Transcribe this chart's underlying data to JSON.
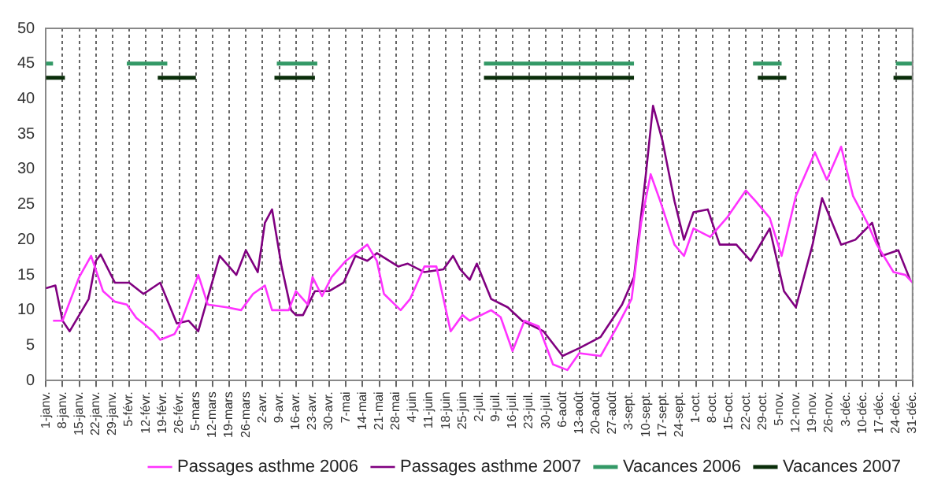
{
  "chart_data": {
    "type": "line",
    "ylim": [
      0,
      50
    ],
    "yticks": [
      0,
      5,
      10,
      15,
      20,
      25,
      30,
      35,
      40,
      45,
      50
    ],
    "xlim": [
      "--01-01",
      "--12-31"
    ],
    "xticks": [
      {
        "value": "--01-01",
        "label": "1-janv."
      },
      {
        "value": "--01-08",
        "label": "8-janv."
      },
      {
        "value": "--01-15",
        "label": "15-janv."
      },
      {
        "value": "--01-22",
        "label": "22-janv."
      },
      {
        "value": "--01-29",
        "label": "29-janv."
      },
      {
        "value": "--02-05",
        "label": "5-févr."
      },
      {
        "value": "--02-12",
        "label": "12-févr."
      },
      {
        "value": "--02-19",
        "label": "19-févr."
      },
      {
        "value": "--02-26",
        "label": "26-févr."
      },
      {
        "value": "--03-05",
        "label": "5-mars"
      },
      {
        "value": "--03-12",
        "label": "12-mars"
      },
      {
        "value": "--03-19",
        "label": "19-mars"
      },
      {
        "value": "--03-26",
        "label": "26-mars"
      },
      {
        "value": "--04-02",
        "label": "2-avr."
      },
      {
        "value": "--04-09",
        "label": "9-avr."
      },
      {
        "value": "--04-16",
        "label": "16-avr."
      },
      {
        "value": "--04-23",
        "label": "23-avr."
      },
      {
        "value": "--04-30",
        "label": "30-avr."
      },
      {
        "value": "--05-07",
        "label": "7-mai"
      },
      {
        "value": "--05-14",
        "label": "14-mai"
      },
      {
        "value": "--05-21",
        "label": "21-mai"
      },
      {
        "value": "--05-28",
        "label": "28-mai"
      },
      {
        "value": "--06-04",
        "label": "4-juin"
      },
      {
        "value": "--06-11",
        "label": "11-juin"
      },
      {
        "value": "--06-18",
        "label": "18-juin"
      },
      {
        "value": "--06-25",
        "label": "25-juin"
      },
      {
        "value": "--07-02",
        "label": "2-juil."
      },
      {
        "value": "--07-09",
        "label": "9-juil."
      },
      {
        "value": "--07-16",
        "label": "16-juil."
      },
      {
        "value": "--07-23",
        "label": "23-juil."
      },
      {
        "value": "--07-30",
        "label": "30-juil."
      },
      {
        "value": "--08-06",
        "label": "6-août"
      },
      {
        "value": "--08-13",
        "label": "13-août"
      },
      {
        "value": "--08-20",
        "label": "20-août"
      },
      {
        "value": "--08-27",
        "label": "27-août"
      },
      {
        "value": "--09-03",
        "label": "3-sept."
      },
      {
        "value": "--09-10",
        "label": "10-sept."
      },
      {
        "value": "--09-17",
        "label": "17-sept."
      },
      {
        "value": "--09-24",
        "label": "24-sept."
      },
      {
        "value": "--10-01",
        "label": "1-oct."
      },
      {
        "value": "--10-08",
        "label": "8-oct."
      },
      {
        "value": "--10-15",
        "label": "15-oct."
      },
      {
        "value": "--10-22",
        "label": "22-oct."
      },
      {
        "value": "--10-29",
        "label": "29-oct."
      },
      {
        "value": "--11-05",
        "label": "5-nov."
      },
      {
        "value": "--11-12",
        "label": "12-nov."
      },
      {
        "value": "--11-19",
        "label": "19-nov."
      },
      {
        "value": "--11-26",
        "label": "26-nov."
      },
      {
        "value": "--12-03",
        "label": "3-déc."
      },
      {
        "value": "--12-10",
        "label": "10-déc."
      },
      {
        "value": "--12-17",
        "label": "17-déc."
      },
      {
        "value": "--12-24",
        "label": "24-déc."
      },
      {
        "value": "--12-31",
        "label": "31-déc."
      }
    ],
    "grid": "x",
    "legend": "bottom",
    "marker": "none",
    "line_style": "solid",
    "series": [
      {
        "name": "Passages asthme 2006",
        "color": "#ff33ff",
        "x": [
          "--01-04",
          "--01-08",
          "--01-15",
          "--01-20",
          "--01-25",
          "--01-30",
          "--02-04",
          "--02-08",
          "--02-15",
          "--02-18",
          "--02-24",
          "--02-27",
          "--03-06",
          "--03-10",
          "--03-18",
          "--03-24",
          "--03-29",
          "--04-03",
          "--04-06",
          "--04-13",
          "--04-16",
          "--04-21",
          "--04-23",
          "--04-27",
          "--05-01",
          "--05-07",
          "--05-16",
          "--05-20",
          "--05-23",
          "--05-30",
          "--06-03",
          "--06-09",
          "--06-14",
          "--06-20",
          "--06-25",
          "--06-28",
          "--07-07",
          "--07-11",
          "--07-16",
          "--07-21",
          "--07-27",
          "--08-02",
          "--08-08",
          "--08-13",
          "--08-22",
          "--08-29",
          "--09-04",
          "--09-08",
          "--09-12",
          "--09-16",
          "--09-22",
          "--09-26",
          "--09-30",
          "--10-07",
          "--10-14",
          "--10-22",
          "--10-26",
          "--11-01",
          "--11-06",
          "--11-12",
          "--11-20",
          "--11-25",
          "--12-01",
          "--12-06",
          "--12-12",
          "--12-16",
          "--12-23",
          "--12-28",
          "--12-31"
        ],
        "values": [
          8.5,
          8.5,
          14.7,
          17.7,
          12.7,
          11.2,
          10.8,
          8.9,
          7,
          5.8,
          6.6,
          8.5,
          15,
          10.8,
          10.4,
          10,
          12.3,
          13.5,
          10,
          10,
          12.7,
          10.8,
          14.7,
          12,
          14.7,
          17,
          19.3,
          17,
          12.3,
          10,
          11.6,
          16.2,
          16.2,
          7,
          9.3,
          8.5,
          10,
          9,
          4.2,
          8.5,
          7.7,
          2.3,
          1.5,
          3.9,
          3.5,
          7.7,
          11.6,
          22.4,
          29.3,
          25.5,
          19.3,
          17.7,
          21.6,
          20.4,
          23.1,
          27,
          25.5,
          23.1,
          17.7,
          26.2,
          32.4,
          28.5,
          33.2,
          26.2,
          22.4,
          19.3,
          15.4,
          15,
          13.9
        ]
      },
      {
        "name": "Passages asthme 2007",
        "color": "#800080",
        "x": [
          "--01-01",
          "--01-05",
          "--01-08",
          "--01-11",
          "--01-19",
          "--01-22",
          "--01-24",
          "--01-30",
          "--02-05",
          "--02-11",
          "--02-18",
          "--02-25",
          "--03-02",
          "--03-06",
          "--03-15",
          "--03-22",
          "--03-26",
          "--03-31",
          "--04-03",
          "--04-06",
          "--04-10",
          "--04-14",
          "--04-16",
          "--04-19",
          "--04-24",
          "--04-30",
          "--05-06",
          "--05-11",
          "--05-16",
          "--05-20",
          "--05-29",
          "--06-02",
          "--06-09",
          "--06-17",
          "--06-21",
          "--06-24",
          "--06-28",
          "--07-01",
          "--07-07",
          "--07-14",
          "--07-20",
          "--07-29",
          "--08-06",
          "--08-13",
          "--08-22",
          "--08-31",
          "--09-05",
          "--09-10",
          "--09-13",
          "--09-17",
          "--09-22",
          "--09-26",
          "--09-30",
          "--10-06",
          "--10-11",
          "--10-18",
          "--10-24",
          "--11-01",
          "--11-07",
          "--11-12",
          "--11-19",
          "--11-23",
          "--12-01",
          "--12-07",
          "--12-14",
          "--12-18",
          "--12-25",
          "--12-30"
        ],
        "values": [
          13.1,
          13.5,
          8.5,
          7,
          11.6,
          17,
          17.9,
          13.9,
          13.9,
          12.3,
          13.9,
          8.1,
          8.5,
          7,
          17.7,
          15,
          18.5,
          15.4,
          22.4,
          24.3,
          16.2,
          10,
          9.3,
          9.3,
          12.7,
          12.7,
          13.9,
          17.7,
          17,
          18.1,
          16.2,
          16.6,
          15.4,
          15.8,
          17.7,
          15.8,
          14.3,
          16.6,
          11.6,
          10.4,
          8.5,
          7,
          3.5,
          4.6,
          6.2,
          10.8,
          14.7,
          29.3,
          39,
          34,
          25.5,
          20,
          23.9,
          24.3,
          19.3,
          19.3,
          17,
          21.6,
          12.7,
          10.4,
          19.3,
          25.9,
          19.3,
          20,
          22.4,
          17.7,
          18.5,
          14.3
        ]
      },
      {
        "name": "Vacances 2006",
        "color": "#339966",
        "x": [
          "--01-01",
          "--01-04",
          "--01-19",
          "--02-04",
          "--02-21",
          "--03-16",
          "--04-08",
          "--04-25",
          "--05-30",
          "--07-04",
          "--09-05",
          "--09-30",
          "--10-25",
          "--11-06",
          "--11-30",
          "--12-24",
          "--12-31"
        ],
        "values": [
          45,
          45,
          null,
          45,
          45,
          null,
          45,
          45,
          null,
          45,
          45,
          null,
          45,
          45,
          null,
          45,
          45
        ]
      },
      {
        "name": "Vacances 2007",
        "color": "#0a2e0a",
        "x": [
          "--01-01",
          "--01-09",
          "--01-28",
          "--02-17",
          "--03-05",
          "--03-22",
          "--04-07",
          "--04-24",
          "--05-30",
          "--07-04",
          "--09-05",
          "--10-01",
          "--10-27",
          "--11-08",
          "--11-30",
          "--12-23",
          "--12-31"
        ],
        "values": [
          43,
          43,
          null,
          43,
          43,
          null,
          43,
          43,
          null,
          43,
          43,
          null,
          43,
          43,
          null,
          43,
          43
        ]
      }
    ]
  }
}
